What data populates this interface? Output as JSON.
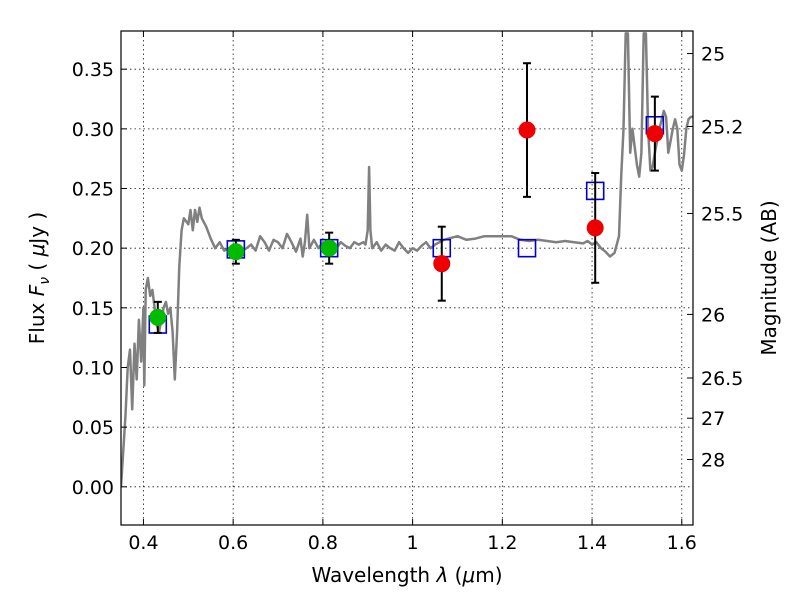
{
  "chart_data": {
    "type": "scatter",
    "title": "",
    "xlabel": "Wavelength  λ (μm)",
    "ylabel": "Flux  Fν  ( μJy )",
    "ylabel_right": "Magnitude (AB)",
    "xlim": [
      0.35,
      1.625
    ],
    "ylim": [
      -0.032,
      0.382
    ],
    "grid": true,
    "x_ticks": [
      {
        "value": 0.4,
        "label": "0.4"
      },
      {
        "value": 0.6,
        "label": "0.6"
      },
      {
        "value": 0.8,
        "label": "0.8"
      },
      {
        "value": 1.0,
        "label": "1"
      },
      {
        "value": 1.2,
        "label": "1.2"
      },
      {
        "value": 1.4,
        "label": "1.4"
      },
      {
        "value": 1.6,
        "label": "1.6"
      }
    ],
    "y_ticks": [
      {
        "value": 0.0,
        "label": "0.00"
      },
      {
        "value": 0.05,
        "label": "0.05"
      },
      {
        "value": 0.1,
        "label": "0.10"
      },
      {
        "value": 0.15,
        "label": "0.15"
      },
      {
        "value": 0.2,
        "label": "0.20"
      },
      {
        "value": 0.25,
        "label": "0.25"
      },
      {
        "value": 0.3,
        "label": "0.30"
      },
      {
        "value": 0.35,
        "label": "0.35"
      }
    ],
    "right_ticks": [
      {
        "label": "25",
        "flux": 0.3631
      },
      {
        "label": "25.2",
        "flux": 0.302
      },
      {
        "label": "25.5",
        "flux": 0.2291
      },
      {
        "label": "26",
        "flux": 0.1445
      },
      {
        "label": "26.5",
        "flux": 0.0912
      },
      {
        "label": "27",
        "flux": 0.0575
      },
      {
        "label": "28",
        "flux": 0.0229
      }
    ],
    "colors": {
      "spectrum": "#808080",
      "model": "#0000cc",
      "red": "#ee0000",
      "green": "#00bb00",
      "error": "#000000"
    },
    "spectrum": [
      [
        0.35,
        0.0
      ],
      [
        0.36,
        0.06
      ],
      [
        0.365,
        0.1
      ],
      [
        0.37,
        0.115
      ],
      [
        0.375,
        0.065
      ],
      [
        0.38,
        0.12
      ],
      [
        0.385,
        0.09
      ],
      [
        0.39,
        0.14
      ],
      [
        0.395,
        0.105
      ],
      [
        0.4,
        0.15
      ],
      [
        0.402,
        0.085
      ],
      [
        0.405,
        0.165
      ],
      [
        0.41,
        0.175
      ],
      [
        0.415,
        0.16
      ],
      [
        0.42,
        0.165
      ],
      [
        0.425,
        0.15
      ],
      [
        0.43,
        0.135
      ],
      [
        0.435,
        0.13
      ],
      [
        0.44,
        0.14
      ],
      [
        0.445,
        0.15
      ],
      [
        0.45,
        0.155
      ],
      [
        0.455,
        0.145
      ],
      [
        0.46,
        0.15
      ],
      [
        0.465,
        0.13
      ],
      [
        0.47,
        0.09
      ],
      [
        0.475,
        0.13
      ],
      [
        0.48,
        0.185
      ],
      [
        0.485,
        0.215
      ],
      [
        0.49,
        0.225
      ],
      [
        0.5,
        0.22
      ],
      [
        0.505,
        0.232
      ],
      [
        0.51,
        0.215
      ],
      [
        0.515,
        0.232
      ],
      [
        0.52,
        0.222
      ],
      [
        0.525,
        0.234
      ],
      [
        0.53,
        0.225
      ],
      [
        0.54,
        0.218
      ],
      [
        0.55,
        0.208
      ],
      [
        0.56,
        0.2
      ],
      [
        0.57,
        0.205
      ],
      [
        0.58,
        0.198
      ],
      [
        0.59,
        0.2
      ],
      [
        0.6,
        0.195
      ],
      [
        0.61,
        0.202
      ],
      [
        0.62,
        0.198
      ],
      [
        0.63,
        0.2
      ],
      [
        0.64,
        0.203
      ],
      [
        0.65,
        0.198
      ],
      [
        0.66,
        0.21
      ],
      [
        0.67,
        0.205
      ],
      [
        0.68,
        0.198
      ],
      [
        0.69,
        0.207
      ],
      [
        0.7,
        0.205
      ],
      [
        0.71,
        0.2
      ],
      [
        0.72,
        0.212
      ],
      [
        0.73,
        0.205
      ],
      [
        0.74,
        0.197
      ],
      [
        0.75,
        0.208
      ],
      [
        0.755,
        0.193
      ],
      [
        0.76,
        0.205
      ],
      [
        0.765,
        0.228
      ],
      [
        0.77,
        0.2
      ],
      [
        0.78,
        0.207
      ],
      [
        0.79,
        0.2
      ],
      [
        0.8,
        0.205
      ],
      [
        0.81,
        0.198
      ],
      [
        0.82,
        0.205
      ],
      [
        0.83,
        0.2
      ],
      [
        0.84,
        0.205
      ],
      [
        0.85,
        0.202
      ],
      [
        0.86,
        0.2
      ],
      [
        0.87,
        0.205
      ],
      [
        0.88,
        0.203
      ],
      [
        0.89,
        0.205
      ],
      [
        0.895,
        0.203
      ],
      [
        0.9,
        0.215
      ],
      [
        0.903,
        0.268
      ],
      [
        0.906,
        0.215
      ],
      [
        0.91,
        0.2
      ],
      [
        0.92,
        0.205
      ],
      [
        0.93,
        0.198
      ],
      [
        0.94,
        0.203
      ],
      [
        0.95,
        0.2
      ],
      [
        0.96,
        0.198
      ],
      [
        0.97,
        0.205
      ],
      [
        0.98,
        0.2
      ],
      [
        0.99,
        0.196
      ],
      [
        1.0,
        0.2
      ],
      [
        1.01,
        0.198
      ],
      [
        1.02,
        0.202
      ],
      [
        1.03,
        0.205
      ],
      [
        1.04,
        0.2
      ],
      [
        1.05,
        0.203
      ],
      [
        1.06,
        0.205
      ],
      [
        1.07,
        0.207
      ],
      [
        1.08,
        0.208
      ],
      [
        1.1,
        0.21
      ],
      [
        1.12,
        0.207
      ],
      [
        1.14,
        0.208
      ],
      [
        1.16,
        0.21
      ],
      [
        1.18,
        0.21
      ],
      [
        1.2,
        0.21
      ],
      [
        1.22,
        0.21
      ],
      [
        1.24,
        0.207
      ],
      [
        1.26,
        0.206
      ],
      [
        1.28,
        0.207
      ],
      [
        1.3,
        0.206
      ],
      [
        1.32,
        0.205
      ],
      [
        1.34,
        0.206
      ],
      [
        1.36,
        0.205
      ],
      [
        1.38,
        0.204
      ],
      [
        1.39,
        0.206
      ],
      [
        1.4,
        0.203
      ],
      [
        1.41,
        0.205
      ],
      [
        1.42,
        0.2
      ],
      [
        1.43,
        0.197
      ],
      [
        1.44,
        0.193
      ],
      [
        1.45,
        0.196
      ],
      [
        1.46,
        0.21
      ],
      [
        1.465,
        0.26
      ],
      [
        1.47,
        0.3
      ],
      [
        1.475,
        0.38
      ],
      [
        1.48,
        0.38
      ],
      [
        1.485,
        0.28
      ],
      [
        1.49,
        0.3
      ],
      [
        1.5,
        0.27
      ],
      [
        1.505,
        0.26
      ],
      [
        1.51,
        0.28
      ],
      [
        1.515,
        0.38
      ],
      [
        1.52,
        0.38
      ],
      [
        1.525,
        0.3
      ],
      [
        1.53,
        0.265
      ],
      [
        1.535,
        0.268
      ],
      [
        1.54,
        0.28
      ],
      [
        1.55,
        0.3
      ],
      [
        1.56,
        0.315
      ],
      [
        1.565,
        0.31
      ],
      [
        1.57,
        0.28
      ],
      [
        1.575,
        0.29
      ],
      [
        1.58,
        0.3
      ],
      [
        1.585,
        0.308
      ],
      [
        1.59,
        0.3
      ],
      [
        1.595,
        0.27
      ],
      [
        1.6,
        0.265
      ],
      [
        1.605,
        0.278
      ],
      [
        1.61,
        0.3
      ],
      [
        1.615,
        0.308
      ],
      [
        1.62,
        0.31
      ],
      [
        1.625,
        0.31
      ]
    ],
    "model_points": [
      {
        "x": 0.432,
        "y": 0.136
      },
      {
        "x": 0.606,
        "y": 0.199
      },
      {
        "x": 0.814,
        "y": 0.2
      },
      {
        "x": 1.065,
        "y": 0.2
      },
      {
        "x": 1.255,
        "y": 0.2
      },
      {
        "x": 1.407,
        "y": 0.248
      },
      {
        "x": 1.54,
        "y": 0.303
      }
    ],
    "green_points": [
      {
        "x": 0.432,
        "y": 0.142,
        "err": 0.013
      },
      {
        "x": 0.606,
        "y": 0.197,
        "err": 0.01
      },
      {
        "x": 0.814,
        "y": 0.2,
        "err": 0.013
      }
    ],
    "red_points": [
      {
        "x": 1.065,
        "y": 0.187,
        "err": 0.031
      },
      {
        "x": 1.255,
        "y": 0.299,
        "err": 0.056
      },
      {
        "x": 1.407,
        "y": 0.217,
        "err": 0.046
      },
      {
        "x": 1.54,
        "y": 0.296,
        "err": 0.031
      }
    ]
  }
}
